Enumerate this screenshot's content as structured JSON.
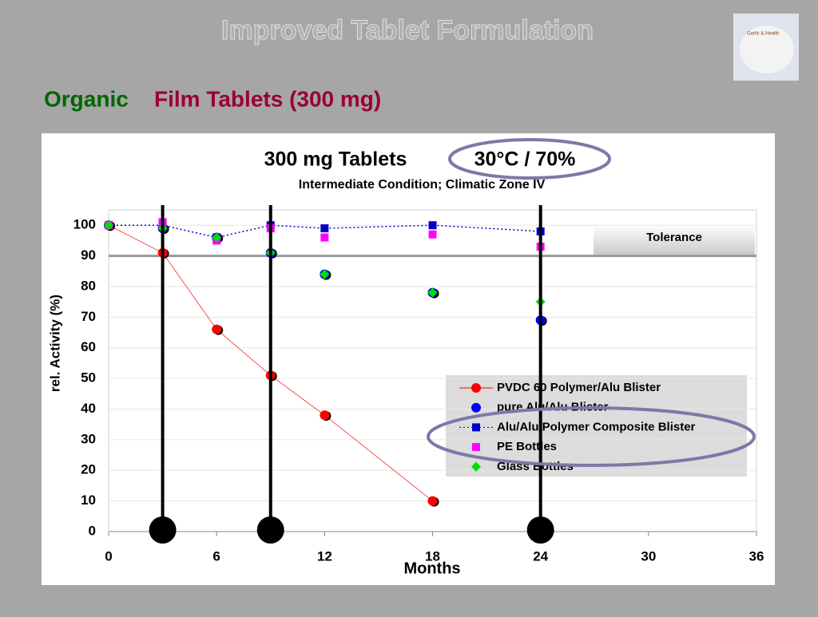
{
  "slide_title": "Improved Tablet Formulation",
  "subtitle_part1": "Organic",
  "subtitle_part2": "Film Tablets (300 mg)",
  "logo_text": "Garlic & Health",
  "chart_data": {
    "type": "scatter",
    "title": "300 mg Tablets",
    "title_condition": "30°C / 70%",
    "subtitle": "Intermediate Condition; Climatic Zone IV",
    "x_label": "Months",
    "y_label": "rel. Activity (%)",
    "tolerance_label": "Tolerance",
    "tolerance_line": 90,
    "highlight_x": [
      3,
      9,
      24
    ],
    "xlim": [
      0,
      36
    ],
    "xticks": [
      0,
      6,
      12,
      18,
      24,
      30,
      36
    ],
    "ylim": [
      0,
      105
    ],
    "yticks": [
      0,
      10,
      20,
      30,
      40,
      50,
      60,
      70,
      80,
      90,
      100
    ],
    "grid": true,
    "series": [
      {
        "name": "PVDC 60 Polymer/Alu Blister",
        "color": "#ff0000",
        "marker": "circle",
        "line": "solid",
        "x": [
          0,
          3,
          6,
          9,
          12,
          18
        ],
        "values": [
          100,
          91,
          66,
          51,
          38,
          10
        ]
      },
      {
        "name": "pure Alu/Alu Blister",
        "color": "#0000ff",
        "marker": "circle",
        "line": "none",
        "x": [
          0,
          3,
          6,
          9,
          12,
          18,
          24
        ],
        "values": [
          100,
          99,
          96,
          91,
          84,
          78,
          69
        ]
      },
      {
        "name": "Alu/Alu Polymer Composite Blister",
        "color": "#0000cc",
        "marker": "square",
        "line": "dotted",
        "x": [
          0,
          3,
          6,
          9,
          12,
          18,
          24
        ],
        "values": [
          100,
          100,
          96,
          100,
          99,
          100,
          98
        ]
      },
      {
        "name": "PE Bottles",
        "color": "#ff00ff",
        "marker": "square",
        "line": "none",
        "x": [
          0,
          3,
          6,
          9,
          12,
          18,
          24
        ],
        "values": [
          100,
          101,
          95,
          99,
          96,
          97,
          93
        ]
      },
      {
        "name": "Glass Bottles",
        "color": "#00dd00",
        "marker": "diamond",
        "line": "none",
        "x": [
          0,
          3,
          6,
          9,
          12,
          18,
          24
        ],
        "values": [
          100,
          99,
          96,
          91,
          84,
          78,
          75
        ]
      }
    ]
  }
}
